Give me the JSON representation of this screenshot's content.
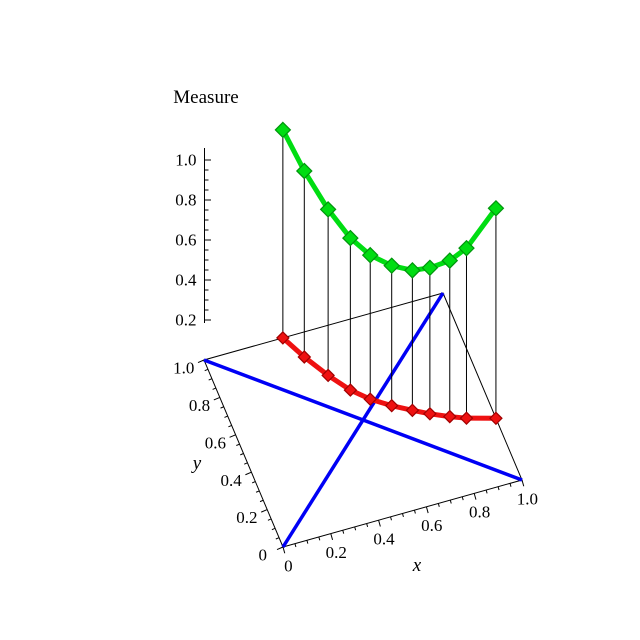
{
  "page": {
    "background": "#ffffff"
  },
  "chart_data": {
    "type": "line",
    "projection": "3d",
    "title": "Measure",
    "xlabel": "x",
    "ylabel": "y",
    "zlabel": "Measure",
    "xlim": [
      0,
      1
    ],
    "ylim": [
      0,
      1
    ],
    "zlim": [
      0,
      1.05
    ],
    "grid": false,
    "x_ticks": {
      "values": [
        0,
        0.2,
        0.4,
        0.6,
        0.8,
        1
      ],
      "labels": [
        "0",
        "0.2",
        "0.4",
        "0.6",
        "0.8",
        "1.0"
      ]
    },
    "y_ticks": {
      "values": [
        0,
        0.2,
        0.4,
        0.6,
        0.8,
        1
      ],
      "labels": [
        "0",
        "0.2",
        "0.4",
        "0.6",
        "0.8",
        "1.0"
      ]
    },
    "z_ticks": {
      "values": [
        0.2,
        0.4,
        0.6,
        0.8,
        1
      ],
      "labels": [
        "0.2",
        "0.4",
        "0.6",
        "0.8",
        "1.0"
      ]
    },
    "diagonals": [
      {
        "name": "diagonal-line-00-11",
        "from": [
          0,
          0
        ],
        "to": [
          1,
          1
        ],
        "color": "#0000f5"
      },
      {
        "name": "diagonal-line-01-10",
        "from": [
          0,
          1
        ],
        "to": [
          1,
          0
        ],
        "color": "#0000f5"
      }
    ],
    "points": [
      {
        "x": 0.33,
        "y": 1.0,
        "measure": 1.04
      },
      {
        "x": 0.38,
        "y": 0.88,
        "measure": 0.93
      },
      {
        "x": 0.44,
        "y": 0.76,
        "measure": 0.83
      },
      {
        "x": 0.5,
        "y": 0.66,
        "measure": 0.76
      },
      {
        "x": 0.56,
        "y": 0.59,
        "measure": 0.72
      },
      {
        "x": 0.63,
        "y": 0.53,
        "measure": 0.7
      },
      {
        "x": 0.7,
        "y": 0.48,
        "measure": 0.7
      },
      {
        "x": 0.76,
        "y": 0.44,
        "measure": 0.73
      },
      {
        "x": 0.83,
        "y": 0.4,
        "measure": 0.78
      },
      {
        "x": 0.89,
        "y": 0.37,
        "measure": 0.85
      },
      {
        "x": 1.0,
        "y": 0.33,
        "measure": 1.05
      }
    ],
    "base_curve": {
      "name": "front-curve",
      "color": "#ee1111",
      "edge": "#a00000",
      "marker": "diamond"
    },
    "measure_curve": {
      "name": "measure-curve",
      "color": "#00dd12",
      "edge": "#00950c",
      "marker": "diamond"
    },
    "stem_color": "#000000",
    "axis_color": "#000000"
  }
}
